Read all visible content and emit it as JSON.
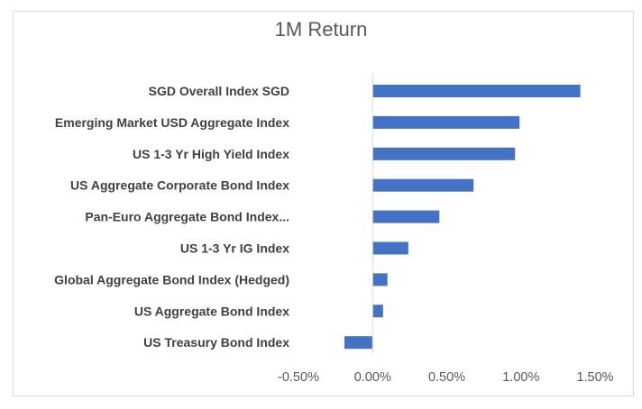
{
  "chart_data": {
    "type": "bar",
    "orientation": "horizontal",
    "title": "1M Return",
    "xlabel": "",
    "ylabel": "",
    "categories": [
      "SGD Overall Index SGD",
      "Emerging Market USD Aggregate Index",
      "US 1-3 Yr High Yield Index",
      "US Aggregate Corporate Bond Index",
      "Pan-Euro Aggregate Bond Index...",
      "US 1-3 Yr IG Index",
      "Global Aggregate Bond Index (Hedged)",
      "US Aggregate Bond Index",
      "US Treasury Bond Index"
    ],
    "values": [
      1.4,
      0.99,
      0.96,
      0.68,
      0.45,
      0.24,
      0.1,
      0.07,
      -0.19
    ],
    "value_unit": "%",
    "xlim": [
      -0.5,
      1.5
    ],
    "x_ticks": [
      -0.5,
      0,
      0.5,
      1.0,
      1.5
    ],
    "x_tick_labels": [
      "-0.50%",
      "0.00%",
      "0.50%",
      "1.00%",
      "1.50%"
    ],
    "gridlines": false,
    "legend": "none",
    "bar_color": "#4472c4",
    "axis_color": "#d9d9d9"
  }
}
